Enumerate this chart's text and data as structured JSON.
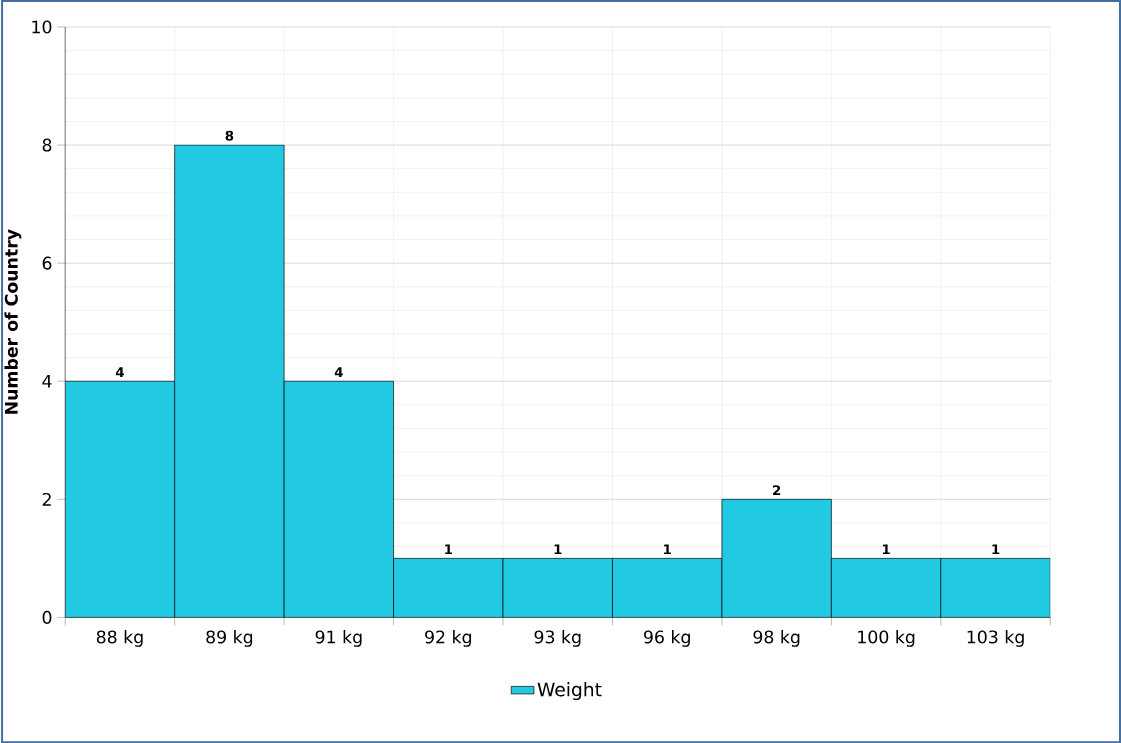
{
  "chart_data": {
    "type": "bar",
    "ylabel": "Number of Country",
    "categories": [
      "88 kg",
      "89 kg",
      "91 kg",
      "92 kg",
      "93 kg",
      "96 kg",
      "98 kg",
      "100 kg",
      "103 kg"
    ],
    "series": [
      {
        "name": "Weight",
        "color": "#22c9e3",
        "values": [
          4,
          8,
          4,
          1,
          1,
          1,
          2,
          1,
          1
        ]
      }
    ],
    "ylim": [
      0,
      10
    ],
    "yticks": [
      0,
      2,
      4,
      6,
      8,
      10
    ],
    "grid": true,
    "legend": "bottom",
    "data_labels": true
  }
}
